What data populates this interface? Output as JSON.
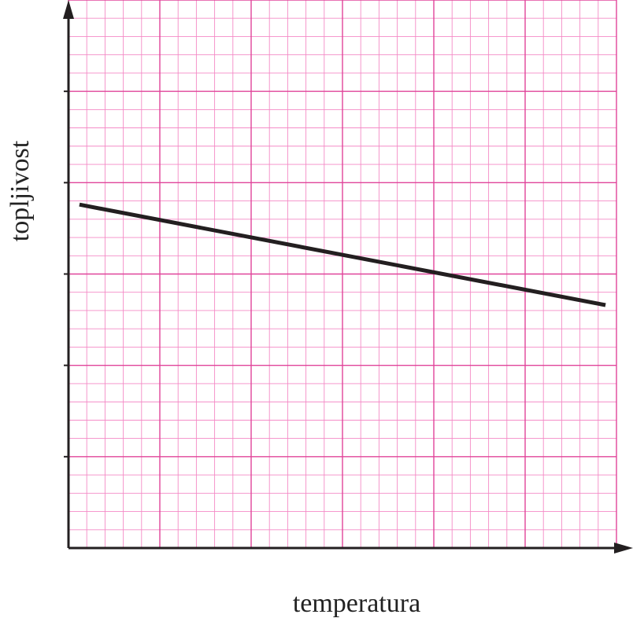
{
  "chart_data": {
    "type": "line",
    "xlabel": "temperatura",
    "ylabel": "topljivost",
    "x_tick_labels": [],
    "y_tick_labels": [],
    "xlim": [
      0,
      30
    ],
    "ylim": [
      0,
      30
    ],
    "grid": true,
    "x": [
      0.6,
      29.4
    ],
    "y": [
      18.8,
      13.3
    ],
    "colors": {
      "grid_minor": "#f48ac6",
      "grid_major": "#e0449a",
      "line": "#231f20",
      "axis": "#231f20"
    }
  }
}
